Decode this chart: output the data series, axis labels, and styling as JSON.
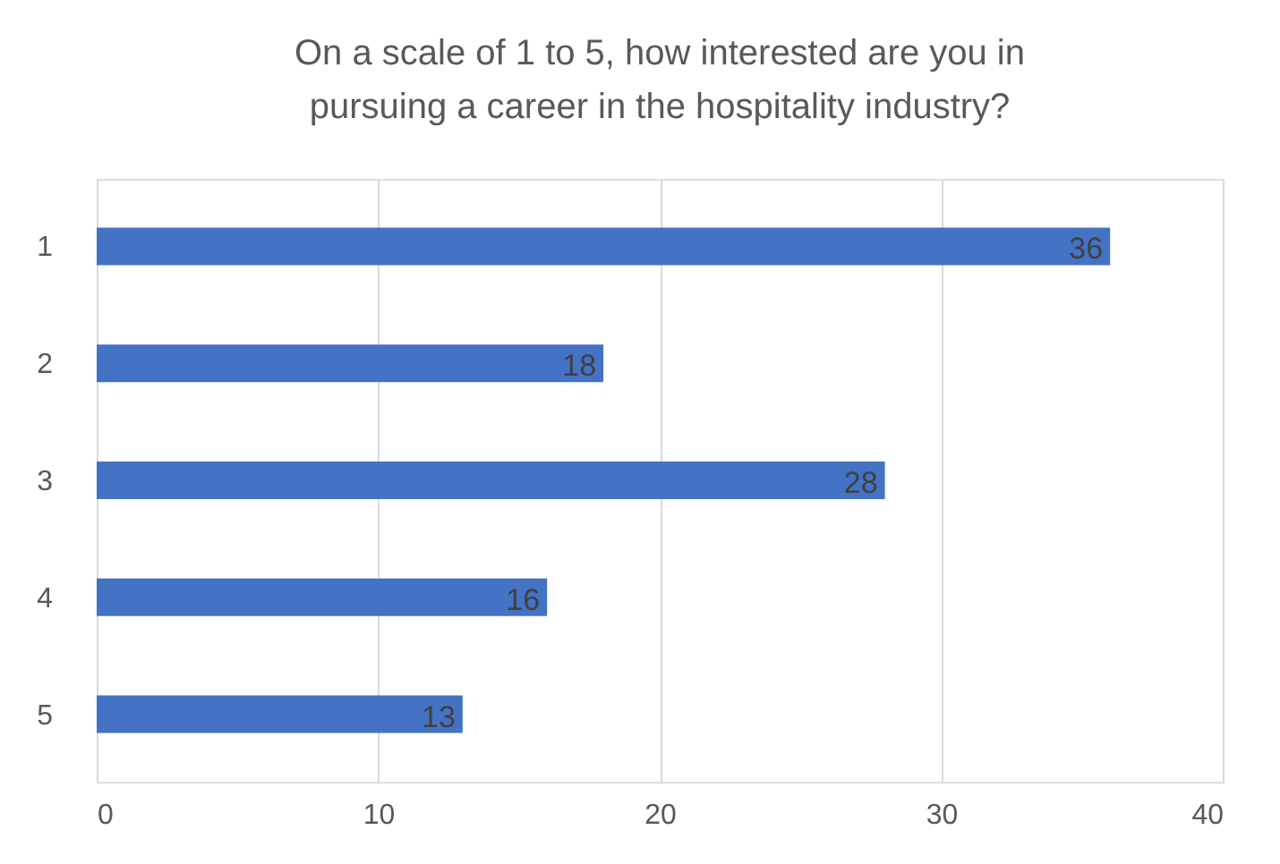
{
  "chart_data": {
    "type": "bar",
    "orientation": "horizontal",
    "title": "On a scale of 1 to 5, how interested are you in pursuing a career in the hospitality industry?",
    "categories": [
      "1",
      "2",
      "3",
      "4",
      "5"
    ],
    "values": [
      36,
      18,
      28,
      16,
      13
    ],
    "color": "#4472c4",
    "xlim": [
      0,
      40
    ],
    "xticks": [
      0,
      10,
      20,
      30,
      40
    ],
    "grid": "x",
    "data_labels": true
  }
}
